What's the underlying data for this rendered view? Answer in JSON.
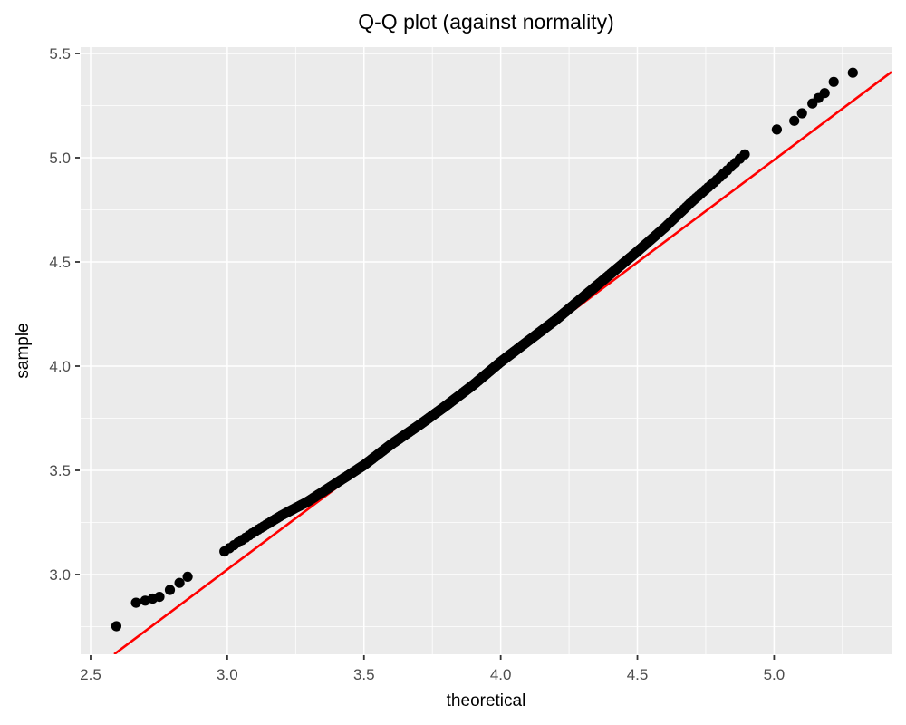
{
  "chart_data": {
    "type": "scatter",
    "title": "Q-Q plot (against normality)",
    "xlabel": "theoretical",
    "ylabel": "sample",
    "xlim": [
      2.4636,
      5.4294
    ],
    "ylim": [
      2.6174,
      5.5304
    ],
    "x_major_ticks": [
      2.5,
      3.0,
      3.5,
      4.0,
      4.5,
      5.0
    ],
    "y_major_ticks": [
      3.0,
      3.5,
      4.0,
      4.5,
      5.0,
      5.5
    ],
    "x_tick_labels": [
      "2.5",
      "3.0",
      "3.5",
      "4.0",
      "4.5",
      "5.0"
    ],
    "y_tick_labels": [
      "3.0",
      "3.5",
      "4.0",
      "4.5",
      "5.0",
      "5.5"
    ],
    "minor_grid_step": 0.25,
    "grid": "major+minor",
    "legend": "none",
    "colors": {
      "panel_bg": "#EBEBEB",
      "grid": "#FFFFFF",
      "points": "#000000",
      "reference_line": "#FF0000",
      "tick_labels": "#4D4D4D",
      "tick_marks": "#333333",
      "titles": "#000000"
    },
    "reference_line": {
      "slope": 0.9828,
      "intercept": 0.0755
    },
    "points_style": {
      "radius_px": 5.6
    },
    "n_points": 700,
    "theoretical_min": 2.594,
    "theoretical_max": 5.288,
    "low_tail_theoretical": [
      2.594,
      2.666,
      2.7,
      2.727,
      2.752,
      2.79,
      2.825,
      2.855
    ],
    "high_tail_theoretical": [
      5.01,
      5.074,
      5.102,
      5.14,
      5.162,
      5.185,
      5.218,
      5.288
    ],
    "qq_curve_anchors": [
      [
        2.594,
        2.752
      ],
      [
        2.666,
        2.865
      ],
      [
        2.7,
        2.875
      ],
      [
        2.727,
        2.885
      ],
      [
        2.752,
        2.893
      ],
      [
        2.8,
        2.935
      ],
      [
        2.85,
        2.985
      ],
      [
        2.9,
        3.03
      ],
      [
        2.96,
        3.085
      ],
      [
        3.0,
        3.12
      ],
      [
        3.1,
        3.205
      ],
      [
        3.2,
        3.285
      ],
      [
        3.294,
        3.35
      ],
      [
        3.4,
        3.44
      ],
      [
        3.5,
        3.525
      ],
      [
        3.6,
        3.625
      ],
      [
        3.7,
        3.715
      ],
      [
        3.8,
        3.81
      ],
      [
        3.9,
        3.91
      ],
      [
        4.0,
        4.02
      ],
      [
        4.1,
        4.12
      ],
      [
        4.2,
        4.22
      ],
      [
        4.3,
        4.33
      ],
      [
        4.4,
        4.44
      ],
      [
        4.5,
        4.55
      ],
      [
        4.6,
        4.665
      ],
      [
        4.7,
        4.79
      ],
      [
        4.8,
        4.905
      ],
      [
        4.887,
        5.01
      ],
      [
        4.953,
        5.083
      ],
      [
        5.01,
        5.135
      ],
      [
        5.074,
        5.177
      ],
      [
        5.102,
        5.213
      ],
      [
        5.14,
        5.26
      ],
      [
        5.162,
        5.286
      ],
      [
        5.185,
        5.31
      ],
      [
        5.218,
        5.364
      ],
      [
        5.288,
        5.408
      ]
    ]
  }
}
